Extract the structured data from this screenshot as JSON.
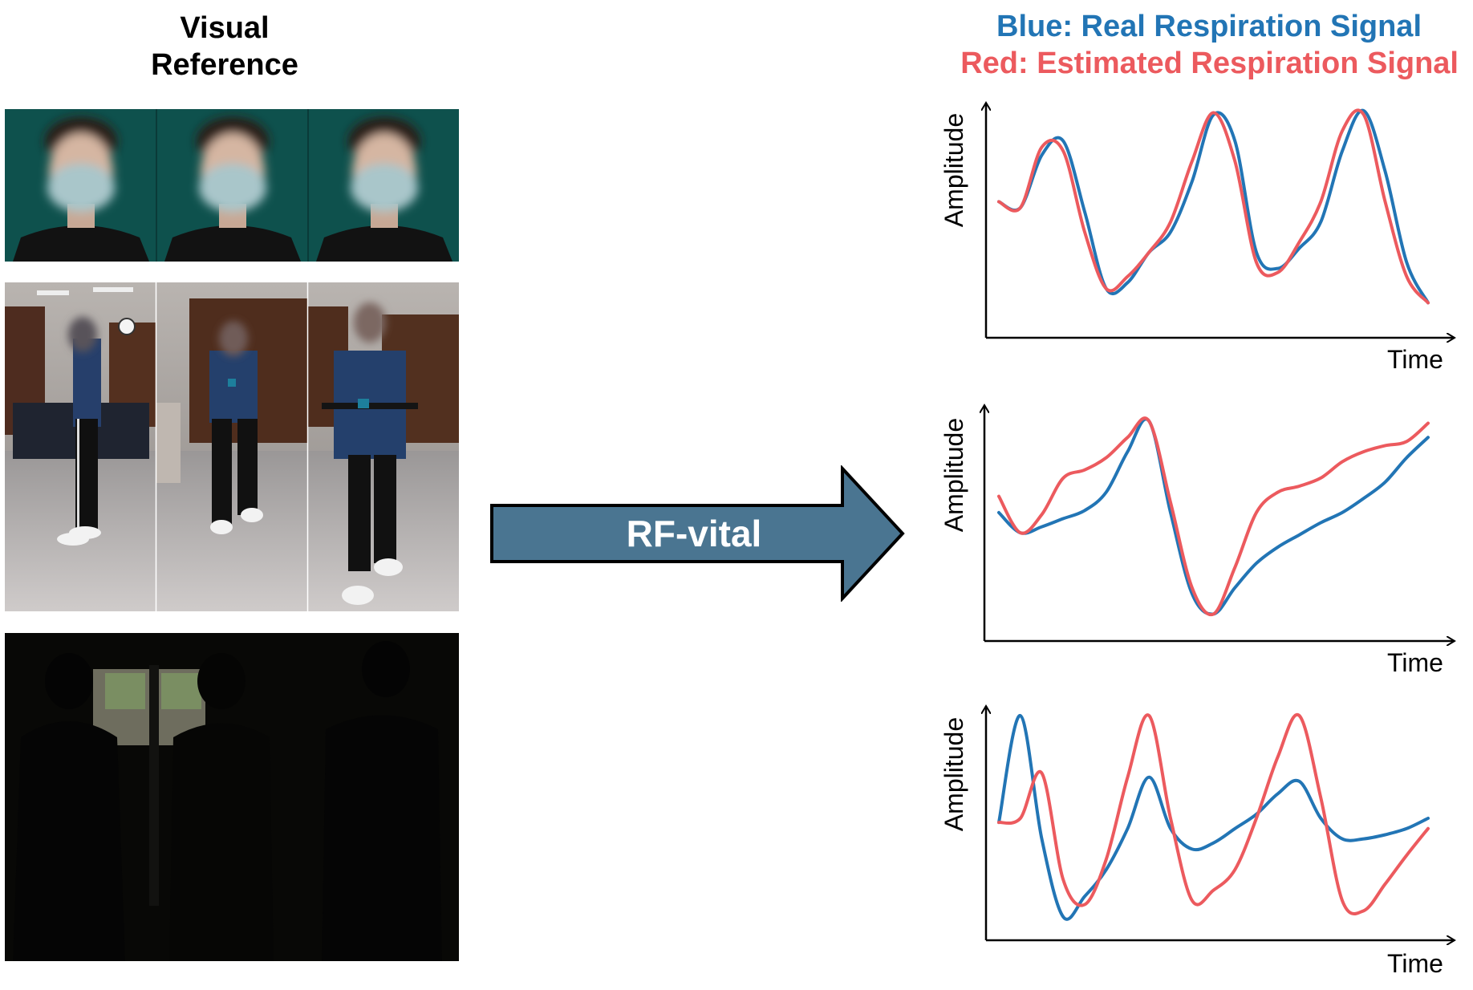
{
  "visual_reference": {
    "line1": "Visual",
    "line2": "Reference"
  },
  "legend": {
    "blue_text": "Blue: Real Respiration Signal",
    "red_text": "Red: Estimated Respiration Signal",
    "blue_color": "#2275b5",
    "red_color": "#ec5a5e"
  },
  "arrow": {
    "label": "RF-vital",
    "fill": "#4a7591"
  },
  "charts": [
    {
      "ylabel": "Amplitude",
      "xlabel": "Time"
    },
    {
      "ylabel": "Amplitude",
      "xlabel": "Time"
    },
    {
      "ylabel": "Amplitude",
      "xlabel": "Time"
    }
  ],
  "chart_data": [
    {
      "type": "line",
      "title": "",
      "xlabel": "Time",
      "ylabel": "Amplitude",
      "x": [
        0,
        0.05,
        0.1,
        0.15,
        0.2,
        0.25,
        0.3,
        0.35,
        0.4,
        0.45,
        0.5,
        0.55,
        0.6,
        0.65,
        0.7,
        0.75,
        0.8,
        0.85,
        0.9,
        0.95,
        1.0
      ],
      "series": [
        {
          "name": "Blue: Real Respiration Signal",
          "color": "#2275b5",
          "values": [
            0.55,
            0.52,
            0.78,
            0.85,
            0.5,
            0.12,
            0.15,
            0.3,
            0.4,
            0.65,
            0.98,
            0.85,
            0.3,
            0.22,
            0.32,
            0.45,
            0.8,
            1.0,
            0.7,
            0.25,
            0.05
          ]
        },
        {
          "name": "Red: Estimated Respiration Signal",
          "color": "#ec5a5e",
          "values": [
            0.55,
            0.52,
            0.82,
            0.8,
            0.4,
            0.12,
            0.18,
            0.3,
            0.45,
            0.75,
            0.99,
            0.75,
            0.25,
            0.2,
            0.35,
            0.55,
            0.9,
            0.98,
            0.55,
            0.18,
            0.05
          ]
        }
      ]
    },
    {
      "type": "line",
      "title": "",
      "xlabel": "Time",
      "ylabel": "Amplitude",
      "x": [
        0,
        0.05,
        0.1,
        0.15,
        0.2,
        0.25,
        0.3,
        0.35,
        0.4,
        0.45,
        0.5,
        0.55,
        0.6,
        0.65,
        0.7,
        0.75,
        0.8,
        0.85,
        0.9,
        0.95,
        1.0
      ],
      "series": [
        {
          "name": "Blue: Real Respiration Signal",
          "color": "#2275b5",
          "values": [
            0.55,
            0.45,
            0.48,
            0.52,
            0.56,
            0.65,
            0.85,
            1.0,
            0.55,
            0.15,
            0.05,
            0.18,
            0.3,
            0.38,
            0.44,
            0.5,
            0.55,
            0.62,
            0.7,
            0.82,
            0.92
          ]
        },
        {
          "name": "Red: Estimated Respiration Signal",
          "color": "#ec5a5e",
          "values": [
            0.63,
            0.45,
            0.54,
            0.72,
            0.76,
            0.82,
            0.92,
            1.0,
            0.6,
            0.18,
            0.05,
            0.28,
            0.55,
            0.65,
            0.68,
            0.72,
            0.8,
            0.85,
            0.88,
            0.9,
            0.99
          ]
        }
      ]
    },
    {
      "type": "line",
      "title": "",
      "xlabel": "Time",
      "ylabel": "Amplitude",
      "x": [
        0,
        0.05,
        0.1,
        0.15,
        0.2,
        0.25,
        0.3,
        0.35,
        0.4,
        0.45,
        0.5,
        0.55,
        0.6,
        0.65,
        0.7,
        0.75,
        0.8,
        0.85,
        0.9,
        0.95,
        1.0
      ],
      "series": [
        {
          "name": "Blue: Real Respiration Signal",
          "color": "#2275b5",
          "values": [
            0.48,
            1.0,
            0.4,
            0.02,
            0.12,
            0.25,
            0.45,
            0.7,
            0.45,
            0.35,
            0.38,
            0.45,
            0.52,
            0.62,
            0.68,
            0.5,
            0.4,
            0.4,
            0.42,
            0.45,
            0.5
          ]
        },
        {
          "name": "Red: Estimated Respiration Signal",
          "color": "#ec5a5e",
          "values": [
            0.48,
            0.5,
            0.72,
            0.2,
            0.08,
            0.3,
            0.7,
            1.0,
            0.5,
            0.1,
            0.15,
            0.25,
            0.5,
            0.8,
            1.0,
            0.6,
            0.1,
            0.05,
            0.18,
            0.32,
            0.45
          ]
        }
      ]
    }
  ]
}
